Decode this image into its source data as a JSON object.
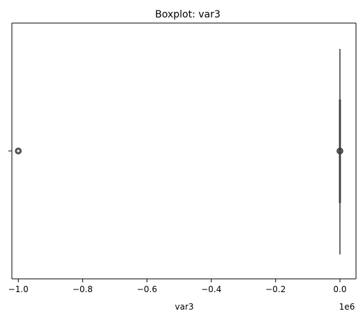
{
  "chart_data": {
    "type": "box",
    "title": "Boxplot: var3",
    "xlabel": "var3",
    "ylabel": "",
    "x_offset_label": "1e6",
    "xlim": [
      -1.02,
      0.05
    ],
    "xticks": [
      -1.0,
      -0.8,
      -0.6,
      -0.4,
      -0.2,
      0.0
    ],
    "xtick_labels": [
      "−1.0",
      "−0.8",
      "−0.6",
      "−0.4",
      "−0.2",
      "0.0"
    ],
    "yticks": [
      ""
    ],
    "orientation": "horizontal",
    "series": [
      {
        "min": 0.0,
        "q1": 0.0,
        "median": 0.0,
        "q3": 0.0,
        "max": 0.0,
        "outliers": [
          -0.999999,
          0.0
        ]
      }
    ],
    "colors": {
      "box": "#1f77b4",
      "line": "#3a3a3a",
      "outlier_edge": "#3a3a3a"
    },
    "grid": false
  }
}
